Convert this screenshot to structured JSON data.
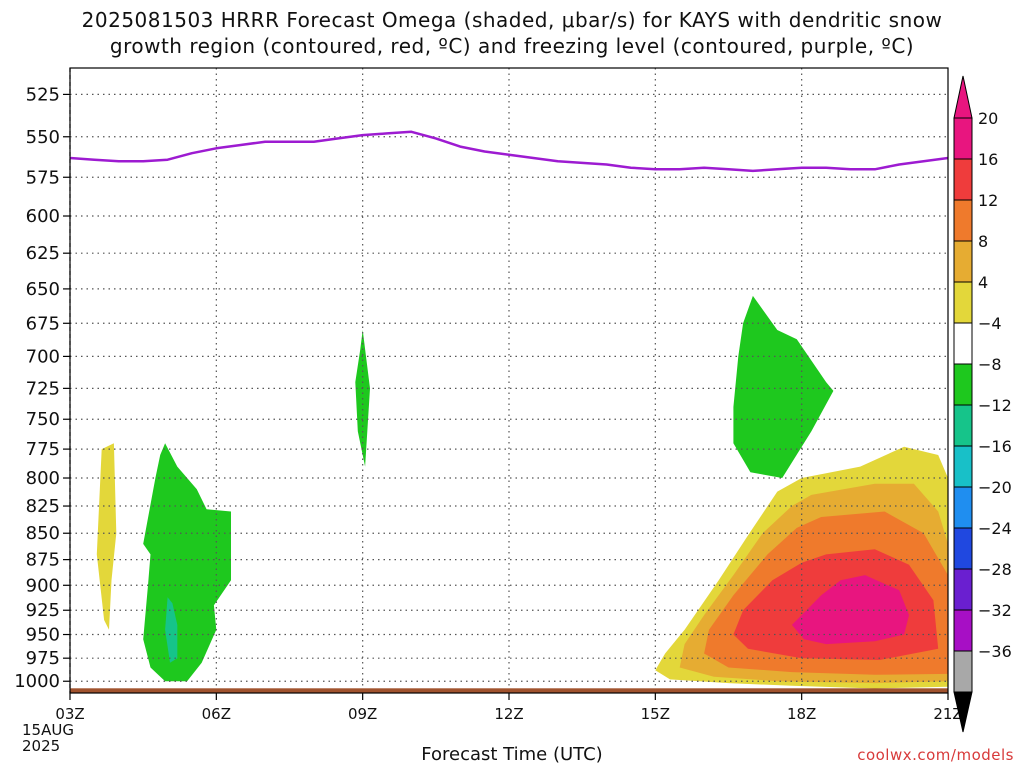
{
  "title_line1": "2025081503 HRRR Forecast Omega (shaded, μbar/s) for KAYS with dendritic snow",
  "title_line2": "growth region (contoured, red, ºC) and freezing level (contoured, purple, ºC)",
  "xlabel": "Forecast Time (UTC)",
  "credit": "coolwx.com/models",
  "start_date": [
    "15AUG",
    "2025"
  ],
  "chart_data": {
    "type": "heatmap",
    "x_ticks": [
      "03Z",
      "06Z",
      "09Z",
      "12Z",
      "15Z",
      "18Z",
      "21Z"
    ],
    "x_range": [
      3,
      21
    ],
    "y_ticks": [
      525,
      550,
      575,
      600,
      625,
      650,
      675,
      700,
      725,
      750,
      775,
      800,
      825,
      850,
      875,
      900,
      925,
      950,
      975,
      1000
    ],
    "y_range": [
      1013,
      510
    ],
    "y_scale": "log-pressure",
    "grid": true,
    "colorbar": {
      "labels": [
        "20",
        "16",
        "12",
        "8",
        "4",
        "−4",
        "−8",
        "−12",
        "−16",
        "−20",
        "−24",
        "−28",
        "−32",
        "−36"
      ],
      "colors": [
        "#e8157f",
        "#ef3c3c",
        "#ef7a2c",
        "#e6ac32",
        "#e3d73a",
        "#ffffff",
        "#1ec81e",
        "#16c48a",
        "#18c0c8",
        "#1f8ef0",
        "#2048e0",
        "#6a1fd0",
        "#a70fc5",
        "#a8a8a8"
      ],
      "top_arrow_color": "#e8157f",
      "bottom_arrow_color": "#000000"
    },
    "omega_regions": [
      {
        "level": 4,
        "color": "#e3d73a",
        "points": [
          [
            3.65,
            775
          ],
          [
            3.9,
            770
          ],
          [
            3.95,
            850
          ],
          [
            3.85,
            895
          ],
          [
            3.8,
            945
          ],
          [
            3.7,
            935
          ],
          [
            3.55,
            870
          ],
          [
            3.6,
            820
          ]
        ]
      },
      {
        "level": -4,
        "color": "#1ec81e",
        "points": [
          [
            4.95,
            770
          ],
          [
            5.2,
            790
          ],
          [
            5.6,
            810
          ],
          [
            5.8,
            828
          ],
          [
            6.3,
            830
          ],
          [
            6.3,
            895
          ],
          [
            5.95,
            920
          ],
          [
            6.0,
            945
          ],
          [
            5.7,
            980
          ],
          [
            5.4,
            1000
          ],
          [
            4.95,
            1000
          ],
          [
            4.65,
            985
          ],
          [
            4.5,
            955
          ],
          [
            4.6,
            900
          ],
          [
            4.65,
            870
          ],
          [
            4.5,
            860
          ],
          [
            4.75,
            800
          ],
          [
            4.85,
            780
          ]
        ]
      },
      {
        "level": -8,
        "color": "#16c48a",
        "points": [
          [
            5.0,
            912
          ],
          [
            5.1,
            918
          ],
          [
            5.2,
            940
          ],
          [
            5.2,
            975
          ],
          [
            5.05,
            980
          ],
          [
            4.95,
            945
          ]
        ]
      },
      {
        "level": -4,
        "color": "#1ec81e",
        "points": [
          [
            9.0,
            680
          ],
          [
            9.15,
            725
          ],
          [
            9.05,
            790
          ],
          [
            8.9,
            760
          ],
          [
            8.85,
            720
          ],
          [
            8.95,
            695
          ]
        ]
      },
      {
        "level": -4,
        "color": "#1ec81e",
        "points": [
          [
            17.0,
            655
          ],
          [
            17.5,
            680
          ],
          [
            17.9,
            687
          ],
          [
            18.5,
            720
          ],
          [
            18.65,
            727
          ],
          [
            18.2,
            760
          ],
          [
            17.6,
            800
          ],
          [
            16.95,
            795
          ],
          [
            16.6,
            770
          ],
          [
            16.6,
            740
          ],
          [
            16.7,
            700
          ],
          [
            16.8,
            675
          ]
        ]
      },
      {
        "level": 4,
        "color": "#e3d73a",
        "points": [
          [
            18.0,
            800
          ],
          [
            19.2,
            790
          ],
          [
            20.1,
            773
          ],
          [
            20.8,
            780
          ],
          [
            21,
            800
          ],
          [
            21,
            1006
          ],
          [
            19.5,
            1008
          ],
          [
            17.8,
            1005
          ],
          [
            16.5,
            1002
          ],
          [
            15.3,
            998
          ],
          [
            15.0,
            988
          ],
          [
            15.2,
            970
          ],
          [
            15.6,
            945
          ],
          [
            16.3,
            895
          ],
          [
            16.9,
            852
          ],
          [
            17.5,
            812
          ]
        ]
      },
      {
        "level": 8,
        "color": "#e6ac32",
        "points": [
          [
            18.2,
            815
          ],
          [
            19.5,
            805
          ],
          [
            20.3,
            805
          ],
          [
            20.8,
            830
          ],
          [
            21,
            860
          ],
          [
            21,
            1000
          ],
          [
            19.5,
            1002
          ],
          [
            17.5,
            1000
          ],
          [
            16.2,
            995
          ],
          [
            15.5,
            985
          ],
          [
            15.6,
            960
          ],
          [
            16.0,
            930
          ],
          [
            16.6,
            890
          ],
          [
            17.2,
            850
          ],
          [
            17.8,
            825
          ]
        ]
      },
      {
        "level": 12,
        "color": "#ef7a2c",
        "points": [
          [
            18.4,
            835
          ],
          [
            19.7,
            830
          ],
          [
            20.5,
            850
          ],
          [
            21,
            890
          ],
          [
            21,
            992
          ],
          [
            19.5,
            993
          ],
          [
            17.8,
            990
          ],
          [
            16.5,
            985
          ],
          [
            16.0,
            970
          ],
          [
            16.1,
            945
          ],
          [
            16.6,
            910
          ],
          [
            17.3,
            870
          ],
          [
            17.9,
            845
          ]
        ]
      },
      {
        "level": 16,
        "color": "#ef3c3c",
        "points": [
          [
            18.5,
            870
          ],
          [
            19.5,
            865
          ],
          [
            20.2,
            880
          ],
          [
            20.7,
            915
          ],
          [
            20.8,
            965
          ],
          [
            19.6,
            977
          ],
          [
            18.0,
            975
          ],
          [
            16.9,
            965
          ],
          [
            16.6,
            950
          ],
          [
            16.8,
            925
          ],
          [
            17.4,
            895
          ],
          [
            18.0,
            878
          ]
        ]
      },
      {
        "level": 20,
        "color": "#e8157f",
        "points": [
          [
            18.8,
            895
          ],
          [
            19.3,
            890
          ],
          [
            20.0,
            905
          ],
          [
            20.2,
            930
          ],
          [
            20.1,
            950
          ],
          [
            19.5,
            957
          ],
          [
            18.5,
            960
          ],
          [
            18.05,
            955
          ],
          [
            17.8,
            940
          ],
          [
            18.1,
            925
          ],
          [
            18.4,
            910
          ]
        ]
      }
    ],
    "freezing_level": {
      "color": "#9d1bd1",
      "points": [
        [
          3,
          563
        ],
        [
          3.5,
          564
        ],
        [
          4,
          565
        ],
        [
          4.5,
          565
        ],
        [
          5,
          564
        ],
        [
          5.5,
          560
        ],
        [
          6,
          557
        ],
        [
          6.5,
          555
        ],
        [
          7,
          553
        ],
        [
          7.5,
          553
        ],
        [
          8,
          553
        ],
        [
          8.5,
          551
        ],
        [
          9,
          549
        ],
        [
          9.5,
          548
        ],
        [
          10,
          547
        ],
        [
          10.5,
          551
        ],
        [
          11,
          556
        ],
        [
          11.5,
          559
        ],
        [
          12,
          561
        ],
        [
          12.5,
          563
        ],
        [
          13,
          565
        ],
        [
          13.5,
          566
        ],
        [
          14,
          567
        ],
        [
          14.5,
          569
        ],
        [
          15,
          570
        ],
        [
          15.5,
          570
        ],
        [
          16,
          569
        ],
        [
          16.5,
          570
        ],
        [
          17,
          571
        ],
        [
          17.5,
          570
        ],
        [
          18,
          569
        ],
        [
          18.5,
          569
        ],
        [
          19,
          570
        ],
        [
          19.5,
          570
        ],
        [
          20,
          567
        ],
        [
          20.5,
          565
        ],
        [
          21,
          563
        ]
      ]
    },
    "surface": {
      "color": "#a0522d",
      "pressure": 1010
    }
  }
}
